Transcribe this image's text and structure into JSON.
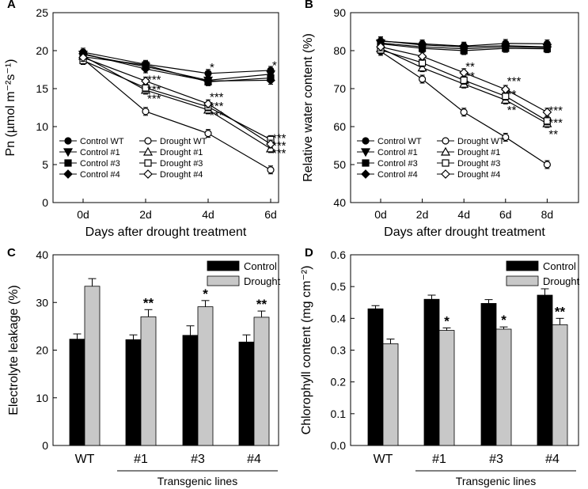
{
  "chart_data": [
    {
      "panel": "A",
      "type": "line",
      "ylabel": "Pn (µmol m⁻²s⁻¹)",
      "xlabel": "Days after drought treatment",
      "categories": [
        "0d",
        "2d",
        "4d",
        "6d"
      ],
      "ylim": [
        0,
        25
      ],
      "yticks": [
        0,
        5,
        10,
        15,
        20,
        25
      ],
      "series": [
        {
          "name": "Control WT",
          "marker": "circle",
          "filled": true,
          "values": [
            19.8,
            18.2,
            17.0,
            17.4
          ]
        },
        {
          "name": "Control #1",
          "marker": "triangle-down",
          "filled": true,
          "values": [
            19.5,
            17.9,
            16.1,
            16.9
          ]
        },
        {
          "name": "Control #3",
          "marker": "square",
          "filled": true,
          "values": [
            19.2,
            18.1,
            15.9,
            16.4
          ]
        },
        {
          "name": "Control #4",
          "marker": "diamond",
          "filled": true,
          "values": [
            19.6,
            17.6,
            16.0,
            16.1
          ]
        },
        {
          "name": "Drought WT",
          "marker": "circle",
          "filled": false,
          "values": [
            18.9,
            12.0,
            9.1,
            4.3
          ]
        },
        {
          "name": "Drought #1",
          "marker": "triangle-up",
          "filled": false,
          "values": [
            19.3,
            14.8,
            12.2,
            7.1
          ]
        },
        {
          "name": "Drought #3",
          "marker": "square",
          "filled": false,
          "values": [
            18.7,
            15.1,
            12.6,
            8.3
          ]
        },
        {
          "name": "Drought #4",
          "marker": "diamond",
          "filled": false,
          "values": [
            19.1,
            16.0,
            13.0,
            7.7
          ]
        }
      ],
      "annotations": [
        {
          "text": "*",
          "cat": 2,
          "value": 17.9
        },
        {
          "text": "*",
          "cat": 3,
          "value": 18.2
        },
        {
          "text": "***",
          "cat": 1,
          "value": 16.3
        },
        {
          "text": "***",
          "cat": 1,
          "value": 15.0
        },
        {
          "text": "***",
          "cat": 1,
          "value": 13.8
        },
        {
          "text": "***",
          "cat": 2,
          "value": 14.0
        },
        {
          "text": "***",
          "cat": 2,
          "value": 12.8
        },
        {
          "text": "***",
          "cat": 2,
          "value": 11.6
        },
        {
          "text": "***",
          "cat": 3,
          "value": 8.6
        },
        {
          "text": "***",
          "cat": 3,
          "value": 7.6
        },
        {
          "text": "***",
          "cat": 3,
          "value": 6.6
        }
      ],
      "legend": [
        "Control WT",
        "Drought WT",
        "Control #1",
        "Drought #1",
        "Control #3",
        "Drought #3",
        "Control #4",
        "Drought #4"
      ]
    },
    {
      "panel": "B",
      "type": "line",
      "ylabel": "Relative water content (%)",
      "xlabel": "Days after drought treatment",
      "categories": [
        "0d",
        "2d",
        "4d",
        "6d",
        "8d"
      ],
      "ylim": [
        40,
        90
      ],
      "yticks": [
        40,
        50,
        60,
        70,
        80,
        90
      ],
      "series": [
        {
          "name": "Control WT",
          "marker": "circle",
          "filled": true,
          "values": [
            82.5,
            81.8,
            81.2,
            81.9,
            81.8
          ]
        },
        {
          "name": "Control #1",
          "marker": "triangle-down",
          "filled": true,
          "values": [
            82.0,
            81.0,
            80.5,
            81.0,
            80.8
          ]
        },
        {
          "name": "Control #3",
          "marker": "square",
          "filled": true,
          "values": [
            81.8,
            80.6,
            80.0,
            80.6,
            80.5
          ]
        },
        {
          "name": "Control #4",
          "marker": "diamond",
          "filled": true,
          "values": [
            82.6,
            81.5,
            81.0,
            81.3,
            81.0
          ]
        },
        {
          "name": "Drought WT",
          "marker": "circle",
          "filled": false,
          "values": [
            79.8,
            72.5,
            63.8,
            57.2,
            50.0
          ]
        },
        {
          "name": "Drought #1",
          "marker": "triangle-up",
          "filled": false,
          "values": [
            80.6,
            75.5,
            71.2,
            67.0,
            60.8
          ]
        },
        {
          "name": "Drought #3",
          "marker": "square",
          "filled": false,
          "values": [
            80.2,
            76.8,
            72.2,
            68.0,
            61.5
          ]
        },
        {
          "name": "Drought #4",
          "marker": "diamond",
          "filled": false,
          "values": [
            81.0,
            78.5,
            74.2,
            69.8,
            63.8
          ]
        }
      ],
      "annotations": [
        {
          "text": "**",
          "cat": 2,
          "value": 76.0
        },
        {
          "text": "**",
          "cat": 2,
          "value": 73.5
        },
        {
          "text": "*",
          "cat": 2,
          "value": 71.3
        },
        {
          "text": "***",
          "cat": 3,
          "value": 72.2
        },
        {
          "text": "**",
          "cat": 3,
          "value": 68.8
        },
        {
          "text": "**",
          "cat": 3,
          "value": 64.6
        },
        {
          "text": "***",
          "cat": 4,
          "value": 64.5
        },
        {
          "text": "***",
          "cat": 4,
          "value": 61.2
        },
        {
          "text": "**",
          "cat": 4,
          "value": 58.2
        }
      ],
      "legend": [
        "Control WT",
        "Drought WT",
        "Control #1",
        "Drought #1",
        "Control #3",
        "Drought #3",
        "Control #4",
        "Drought #4"
      ]
    },
    {
      "panel": "C",
      "type": "bar",
      "ylabel": "Electrolyte leakage (%)",
      "categories": [
        "WT",
        "#1",
        "#3",
        "#4"
      ],
      "group_label": "Transgenic lines",
      "ylim": [
        0,
        40
      ],
      "yticks": [
        0,
        10,
        20,
        30,
        40
      ],
      "series": [
        {
          "name": "Control",
          "color": "#000000",
          "values": [
            22.3,
            22.2,
            23.1,
            21.7
          ],
          "errors": [
            1.1,
            1.0,
            2.0,
            1.5
          ]
        },
        {
          "name": "Drought",
          "color": "#c8c8c8",
          "values": [
            33.4,
            27.0,
            29.1,
            26.9
          ],
          "errors": [
            1.6,
            1.5,
            1.3,
            1.3
          ]
        }
      ],
      "annotations": [
        "",
        "**",
        "*",
        "**"
      ]
    },
    {
      "panel": "D",
      "type": "bar",
      "ylabel": "Chlorophyll content (mg cm⁻²)",
      "categories": [
        "WT",
        "#1",
        "#3",
        "#4"
      ],
      "group_label": "Transgenic lines",
      "ylim": [
        0,
        0.6
      ],
      "yticks": [
        0.0,
        0.1,
        0.2,
        0.3,
        0.4,
        0.5,
        0.6
      ],
      "series": [
        {
          "name": "Control",
          "color": "#000000",
          "values": [
            0.43,
            0.46,
            0.447,
            0.473
          ],
          "errors": [
            0.01,
            0.013,
            0.012,
            0.02
          ]
        },
        {
          "name": "Drought",
          "color": "#c8c8c8",
          "values": [
            0.32,
            0.362,
            0.366,
            0.38
          ],
          "errors": [
            0.015,
            0.008,
            0.007,
            0.02
          ]
        }
      ],
      "annotations": [
        "",
        "*",
        "*",
        "**"
      ]
    }
  ]
}
